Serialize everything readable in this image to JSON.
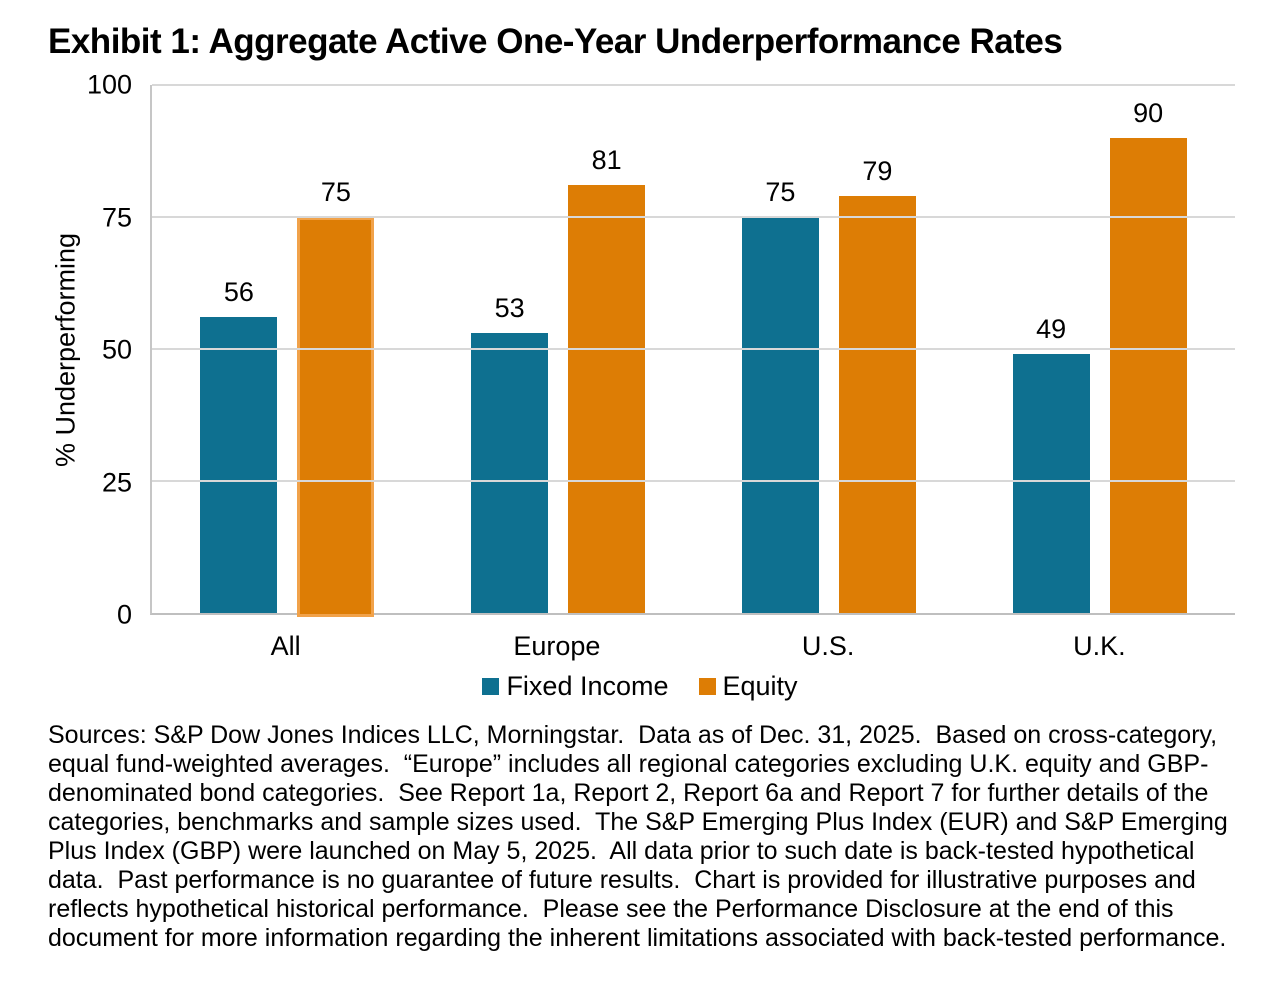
{
  "title": "Exhibit 1: Aggregate Active One-Year Underperformance Rates",
  "chart_data": {
    "type": "bar",
    "categories": [
      "All",
      "Europe",
      "U.S.",
      "U.K."
    ],
    "series": [
      {
        "name": "Fixed Income",
        "color": "#0E7090",
        "values": [
          56,
          53,
          75,
          49
        ]
      },
      {
        "name": "Equity",
        "color": "#DD7D05",
        "values": [
          75,
          81,
          79,
          90
        ]
      }
    ],
    "title": "Exhibit 1: Aggregate Active One-Year Underperformance Rates",
    "xlabel": "",
    "ylabel": "% Underperforming",
    "ylim": [
      0,
      100
    ],
    "yticks": [
      0,
      25,
      50,
      75,
      100
    ],
    "grid": "horizontal",
    "legend_position": "bottom-center",
    "value_labels": true,
    "highlight": {
      "series": "Equity",
      "category": "All",
      "border_color": "#F1A24A"
    }
  },
  "source_text": "Sources: S&P Dow Jones Indices LLC, Morningstar.  Data as of Dec. 31, 2025.  Based on cross-category, equal fund-weighted averages.  “Europe” includes all regional categories excluding U.K. equity and GBP-denominated bond categories.  See Report 1a, Report 2, Report 6a and Report 7 for further details of the categories, benchmarks and sample sizes used.  The S&P Emerging Plus Index (EUR) and S&P Emerging Plus Index (GBP) were launched on May 5, 2025.  All data prior to such date is back-tested hypothetical data.  Past performance is no guarantee of future results.  Chart is provided for illustrative purposes and reflects hypothetical historical performance.  Please see the Performance Disclosure at the end of this document for more information regarding the inherent limitations associated with back-tested performance."
}
